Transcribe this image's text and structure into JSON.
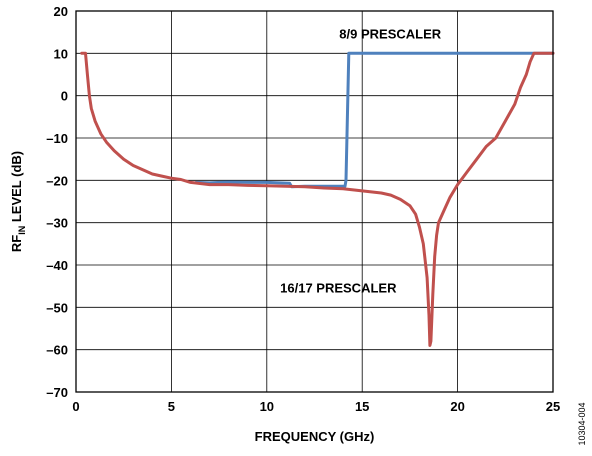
{
  "chart_data": {
    "type": "line",
    "title": "",
    "xlabel": "FREQUENCY (GHz)",
    "ylabel_main": "RF",
    "ylabel_sub": "IN",
    "ylabel_rest": " LEVEL (dB)",
    "xlim": [
      0,
      25
    ],
    "ylim": [
      -70,
      20
    ],
    "x_ticks": [
      0,
      5,
      10,
      15,
      20,
      25
    ],
    "x_tick_labels": [
      "0",
      "5",
      "10",
      "15",
      "20",
      "25"
    ],
    "y_ticks": [
      20,
      10,
      0,
      -10,
      -20,
      -30,
      -40,
      -50,
      -60,
      -70
    ],
    "y_tick_labels": [
      "20",
      "10",
      "0",
      "–10",
      "–20",
      "–30",
      "–40",
      "–50",
      "–60",
      "–70"
    ],
    "grid": true,
    "legend": "none",
    "figure_id": "10304-004",
    "annotations": [
      {
        "text": "8/9 PRESCALER",
        "x": 13.8,
        "y": 13.5
      },
      {
        "text": "16/17 PRESCALER",
        "x": 10.7,
        "y": -46.5
      }
    ],
    "series": [
      {
        "name": "8/9 PRESCALER",
        "color": "#4f81bd",
        "x": [
          6.3,
          7,
          8,
          9,
          10,
          11.2,
          11.3,
          12,
          13,
          14.1,
          14.15,
          14.3,
          15,
          16,
          17,
          18,
          19,
          20,
          21,
          22,
          23,
          24,
          25
        ],
        "y": [
          -20.5,
          -20.6,
          -20.4,
          -20.5,
          -20.5,
          -20.7,
          -21.5,
          -21.4,
          -21.4,
          -21.4,
          -20,
          10,
          10,
          10,
          10,
          10,
          10,
          10,
          10,
          10,
          10,
          10,
          10
        ]
      },
      {
        "name": "16/17 PRESCALER",
        "color": "#c0504d",
        "x": [
          0.3,
          0.5,
          0.6,
          0.7,
          0.8,
          1.0,
          1.3,
          1.6,
          2.0,
          2.5,
          3.0,
          3.5,
          4.0,
          4.5,
          5.0,
          5.5,
          6.0,
          7.0,
          8.0,
          9.0,
          10.0,
          11.0,
          12.0,
          13.0,
          14.0,
          15.0,
          16.0,
          16.5,
          17.0,
          17.5,
          17.8,
          18.0,
          18.2,
          18.4,
          18.5,
          18.55,
          18.6,
          18.7,
          18.8,
          18.9,
          19.0,
          19.3,
          19.6,
          20.0,
          20.5,
          21.0,
          21.5,
          22.0,
          22.5,
          23.0,
          23.3,
          23.6,
          23.8,
          24.0,
          25.0
        ],
        "y": [
          10,
          10,
          5,
          0,
          -3,
          -6,
          -9,
          -11,
          -13,
          -15,
          -16.5,
          -17.5,
          -18.5,
          -19,
          -19.5,
          -19.8,
          -20.5,
          -21,
          -21,
          -21.2,
          -21.3,
          -21.4,
          -21.5,
          -21.8,
          -22,
          -22.5,
          -23,
          -23.5,
          -24.5,
          -26,
          -28,
          -31,
          -35,
          -43,
          -52,
          -59,
          -58,
          -47,
          -38,
          -33,
          -30,
          -27,
          -24,
          -21,
          -18,
          -15,
          -12,
          -10,
          -6,
          -2,
          2,
          5,
          8,
          10,
          10
        ]
      }
    ]
  }
}
